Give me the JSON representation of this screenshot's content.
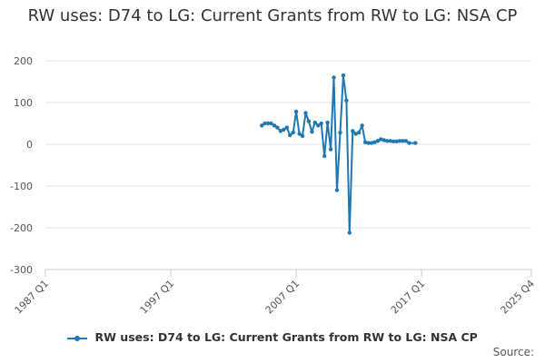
{
  "chart_data": {
    "type": "line",
    "title": "RW uses: D74 to LG: Current Grants from RW to LG: NSA CP",
    "xlabel": "",
    "ylabel": "",
    "x_start": "1987 Q1",
    "x_end": "2025 Q4",
    "xticks": [
      "1987 Q1",
      "1997 Q1",
      "2007 Q1",
      "2017 Q1",
      "2025 Q4"
    ],
    "ylim": [
      -300,
      200
    ],
    "yticks": [
      200,
      100,
      0,
      -100,
      -200,
      -300
    ],
    "grid": true,
    "legend_position": "bottom",
    "color": "#1f77b4",
    "series": [
      {
        "name": "RW uses: D74 to LG: Current Grants from RW to LG: NSA CP",
        "x": [
          "2004 Q2",
          "2004 Q3",
          "2004 Q4",
          "2005 Q1",
          "2005 Q2",
          "2005 Q3",
          "2005 Q4",
          "2006 Q1",
          "2006 Q2",
          "2006 Q3",
          "2006 Q4",
          "2007 Q1",
          "2007 Q2",
          "2007 Q3",
          "2007 Q4",
          "2008 Q1",
          "2008 Q2",
          "2008 Q3",
          "2008 Q4",
          "2009 Q1",
          "2009 Q2",
          "2009 Q3",
          "2009 Q4",
          "2010 Q1",
          "2010 Q2",
          "2010 Q3",
          "2010 Q4",
          "2011 Q1",
          "2011 Q2",
          "2011 Q3",
          "2011 Q4",
          "2012 Q1",
          "2012 Q2",
          "2012 Q3",
          "2012 Q4",
          "2013 Q1",
          "2013 Q2",
          "2013 Q3",
          "2013 Q4",
          "2014 Q1",
          "2014 Q2",
          "2014 Q3",
          "2014 Q4",
          "2015 Q1",
          "2015 Q2",
          "2015 Q3",
          "2015 Q4",
          "2016 Q1",
          "2016 Q3"
        ],
        "values": [
          45,
          50,
          50,
          50,
          45,
          40,
          32,
          35,
          40,
          22,
          28,
          78,
          25,
          20,
          75,
          55,
          30,
          52,
          45,
          50,
          -28,
          52,
          -12,
          160,
          -110,
          28,
          165,
          105,
          -212,
          32,
          25,
          28,
          45,
          5,
          3,
          3,
          5,
          8,
          12,
          10,
          8,
          8,
          7,
          7,
          8,
          8,
          8,
          3,
          3
        ]
      }
    ]
  },
  "source_label": "Source:"
}
